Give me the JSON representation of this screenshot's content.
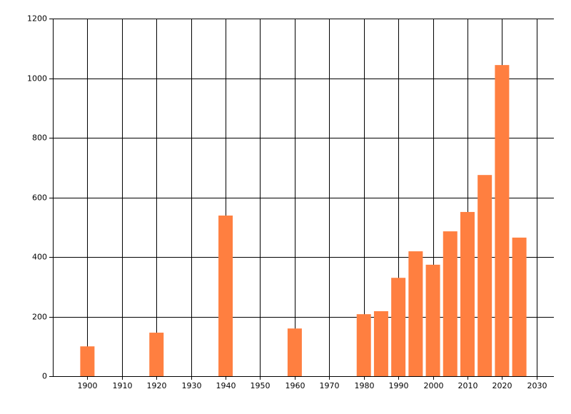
{
  "chart_data": {
    "type": "bar",
    "x": [
      1900,
      1920,
      1940,
      1960,
      1980,
      1985,
      1990,
      1995,
      2000,
      2005,
      2010,
      2015,
      2020,
      2025
    ],
    "values": [
      100,
      146,
      539,
      160,
      208,
      218,
      330,
      419,
      374,
      486,
      551,
      675,
      1044,
      465
    ],
    "color": "#ff7f40",
    "xlim": [
      1890,
      2035
    ],
    "ylim": [
      0,
      1200
    ],
    "xticks": [
      1900,
      1910,
      1920,
      1930,
      1940,
      1950,
      1960,
      1970,
      1980,
      1990,
      2000,
      2010,
      2020,
      2030
    ],
    "yticks": [
      0,
      200,
      400,
      600,
      800,
      1000,
      1200
    ],
    "grid": true
  }
}
